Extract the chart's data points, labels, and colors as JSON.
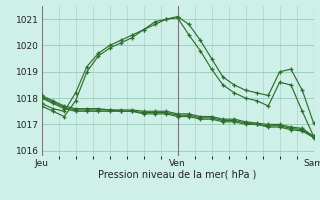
{
  "title": "Pression niveau de la mer( hPa )",
  "bg_color": "#cff0e8",
  "grid_color": "#9ecfbe",
  "line_color": "#2d6e2d",
  "xlim": [
    0,
    48
  ],
  "ylim": [
    1015.8,
    1021.5
  ],
  "yticks": [
    1016,
    1017,
    1018,
    1019,
    1020,
    1021
  ],
  "xtick_positions": [
    0,
    24,
    48
  ],
  "xtick_labels": [
    "Jeu",
    "Ven",
    "Sam"
  ],
  "vline_color": "#777777",
  "series": [
    {
      "x": [
        0,
        2,
        4,
        6,
        8,
        10,
        12,
        14,
        16,
        18,
        20,
        22,
        24,
        26,
        28,
        30,
        32,
        34,
        36,
        38,
        40,
        42,
        44,
        46,
        48
      ],
      "y": [
        1017.7,
        1017.5,
        1017.3,
        1017.9,
        1019.0,
        1019.6,
        1019.9,
        1020.1,
        1020.3,
        1020.6,
        1020.8,
        1021.0,
        1021.1,
        1020.8,
        1020.2,
        1019.5,
        1018.8,
        1018.5,
        1018.3,
        1018.2,
        1018.1,
        1019.0,
        1019.1,
        1018.3,
        1017.05
      ]
    },
    {
      "x": [
        0,
        2,
        4,
        6,
        8,
        10,
        12,
        14,
        16,
        18,
        20,
        22,
        24,
        26,
        28,
        30,
        32,
        34,
        36,
        38,
        40,
        42,
        44,
        46,
        48
      ],
      "y": [
        1017.8,
        1017.6,
        1017.5,
        1018.2,
        1019.2,
        1019.7,
        1020.0,
        1020.2,
        1020.4,
        1020.6,
        1020.9,
        1021.0,
        1021.05,
        1020.4,
        1019.8,
        1019.1,
        1018.5,
        1018.2,
        1018.0,
        1017.9,
        1017.7,
        1018.6,
        1018.5,
        1017.5,
        1016.55
      ]
    },
    {
      "x": [
        0,
        2,
        4,
        6,
        8,
        10,
        12,
        14,
        16,
        18,
        20,
        22,
        24,
        26,
        28,
        30,
        32,
        34,
        36,
        38,
        40,
        42,
        44,
        46,
        48
      ],
      "y": [
        1018.0,
        1017.8,
        1017.6,
        1017.5,
        1017.5,
        1017.5,
        1017.5,
        1017.5,
        1017.5,
        1017.4,
        1017.4,
        1017.4,
        1017.3,
        1017.3,
        1017.2,
        1017.2,
        1017.1,
        1017.1,
        1017.0,
        1017.0,
        1016.9,
        1016.9,
        1016.8,
        1016.75,
        1016.5
      ]
    },
    {
      "x": [
        0,
        2,
        4,
        6,
        8,
        10,
        12,
        14,
        16,
        18,
        20,
        22,
        24,
        26,
        28,
        30,
        32,
        34,
        36,
        38,
        40,
        42,
        44,
        46,
        48
      ],
      "y": [
        1018.05,
        1017.85,
        1017.65,
        1017.55,
        1017.55,
        1017.55,
        1017.55,
        1017.5,
        1017.5,
        1017.45,
        1017.45,
        1017.45,
        1017.35,
        1017.35,
        1017.25,
        1017.25,
        1017.15,
        1017.15,
        1017.05,
        1017.0,
        1016.95,
        1016.95,
        1016.85,
        1016.8,
        1016.52
      ]
    },
    {
      "x": [
        0,
        2,
        4,
        6,
        8,
        10,
        12,
        14,
        16,
        18,
        20,
        22,
        24,
        26,
        28,
        30,
        32,
        34,
        36,
        38,
        40,
        42,
        44,
        46,
        48
      ],
      "y": [
        1018.1,
        1017.9,
        1017.7,
        1017.6,
        1017.6,
        1017.6,
        1017.55,
        1017.55,
        1017.55,
        1017.5,
        1017.5,
        1017.5,
        1017.4,
        1017.4,
        1017.3,
        1017.3,
        1017.2,
        1017.2,
        1017.1,
        1017.05,
        1017.0,
        1017.0,
        1016.9,
        1016.85,
        1016.55
      ]
    }
  ]
}
